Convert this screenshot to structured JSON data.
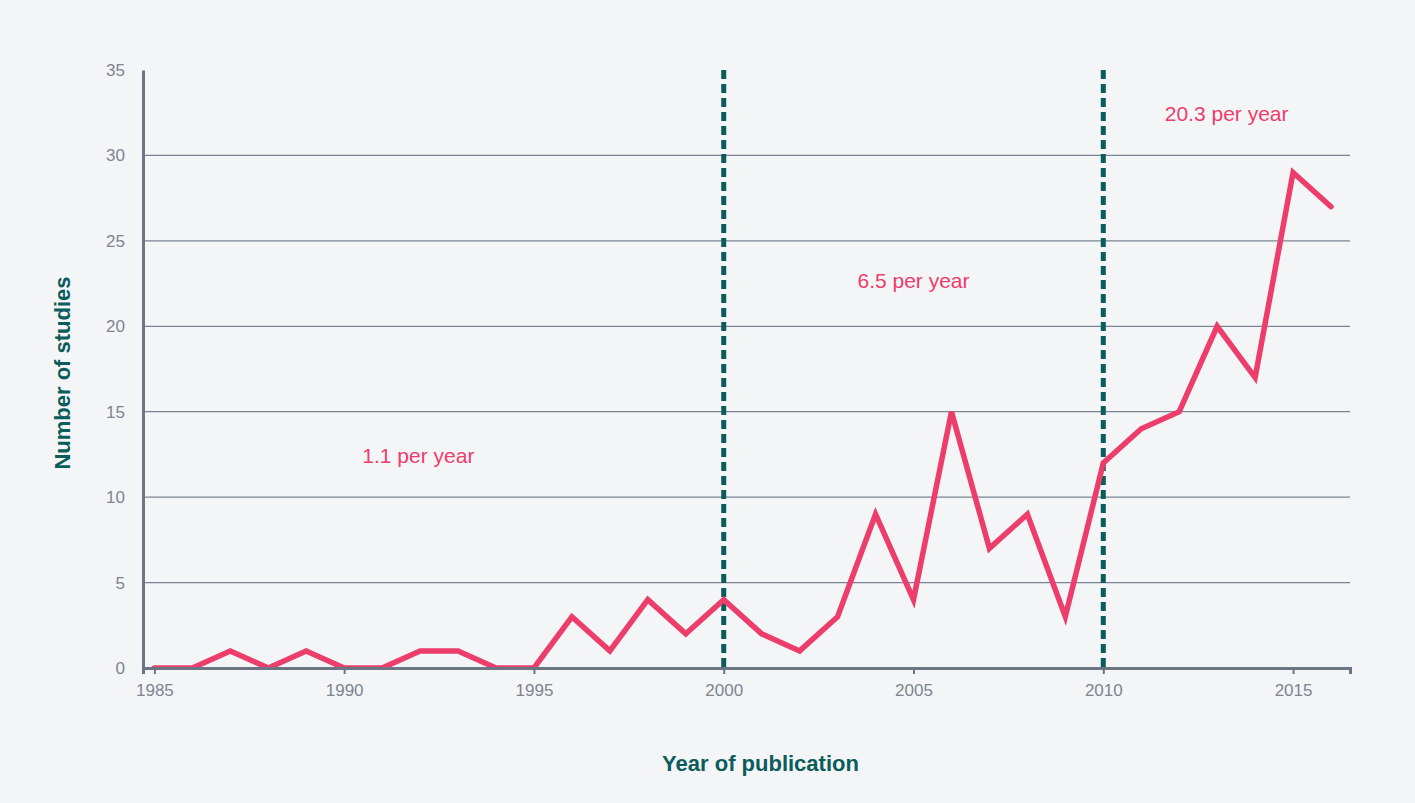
{
  "chart_data": {
    "type": "line",
    "x_label": "Year of publication",
    "y_label": "Number of studies",
    "x": [
      1985,
      1986,
      1987,
      1988,
      1989,
      1990,
      1991,
      1992,
      1993,
      1994,
      1995,
      1996,
      1997,
      1998,
      1999,
      2000,
      2001,
      2002,
      2003,
      2004,
      2005,
      2006,
      2007,
      2008,
      2009,
      2010,
      2011,
      2012,
      2013,
      2014,
      2015,
      2016
    ],
    "values": [
      0,
      0,
      1,
      0,
      1,
      0,
      0,
      1,
      1,
      0,
      0,
      3,
      1,
      4,
      2,
      4,
      2,
      1,
      3,
      9,
      4,
      15,
      7,
      9,
      3,
      12,
      14,
      15,
      20,
      17,
      29,
      27
    ],
    "color": "#ec3d6b",
    "xlim": [
      1984.7,
      2016.5
    ],
    "xticks": [
      1985,
      1990,
      1995,
      2000,
      2005,
      2010,
      2015
    ],
    "ylim": [
      0,
      35
    ],
    "yticks": [
      0,
      5,
      10,
      15,
      20,
      25,
      30,
      35
    ],
    "grid": true,
    "dividers": [
      2000,
      2010
    ],
    "annotations": [
      "1.1 per year",
      "6.5 per year",
      "20.3 per year"
    ]
  }
}
